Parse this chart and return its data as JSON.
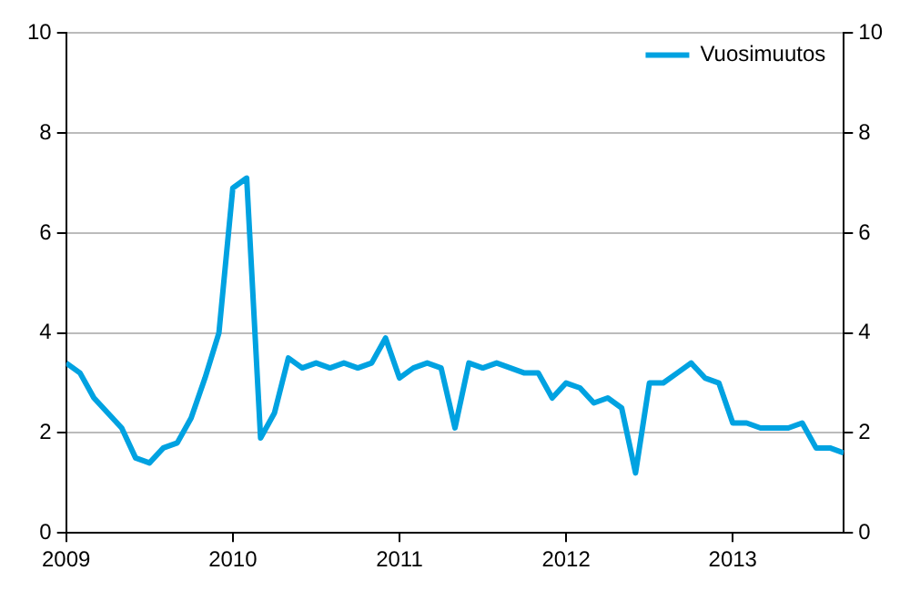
{
  "chart_data": {
    "type": "line",
    "x": [
      "2009-01",
      "2009-02",
      "2009-03",
      "2009-04",
      "2009-05",
      "2009-06",
      "2009-07",
      "2009-08",
      "2009-09",
      "2009-10",
      "2009-11",
      "2009-12",
      "2010-01",
      "2010-02",
      "2010-03",
      "2010-04",
      "2010-05",
      "2010-06",
      "2010-07",
      "2010-08",
      "2010-09",
      "2010-10",
      "2010-11",
      "2010-12",
      "2011-01",
      "2011-02",
      "2011-03",
      "2011-04",
      "2011-05",
      "2011-06",
      "2011-07",
      "2011-08",
      "2011-09",
      "2011-10",
      "2011-11",
      "2011-12",
      "2012-01",
      "2012-02",
      "2012-03",
      "2012-04",
      "2012-05",
      "2012-06",
      "2012-07",
      "2012-08",
      "2012-09",
      "2012-10",
      "2012-11",
      "2012-12",
      "2013-01",
      "2013-02",
      "2013-03",
      "2013-04",
      "2013-05",
      "2013-06",
      "2013-07",
      "2013-08",
      "2013-09"
    ],
    "series": [
      {
        "name": "Vuosimuutos",
        "color": "#00a2e1",
        "values": [
          3.4,
          3.2,
          2.7,
          2.4,
          2.1,
          1.5,
          1.4,
          1.7,
          1.8,
          2.3,
          3.1,
          4.0,
          6.9,
          7.1,
          1.9,
          2.4,
          3.5,
          3.3,
          3.4,
          3.3,
          3.4,
          3.3,
          3.4,
          3.9,
          3.1,
          3.3,
          3.4,
          3.3,
          2.1,
          3.4,
          3.3,
          3.4,
          3.3,
          3.2,
          3.2,
          2.7,
          3.0,
          2.9,
          2.6,
          2.7,
          2.5,
          1.2,
          3.0,
          3.0,
          3.2,
          3.4,
          3.1,
          3.0,
          2.2,
          2.2,
          2.1,
          2.1,
          2.1,
          2.2,
          1.7,
          1.7,
          1.6
        ]
      }
    ],
    "xlim": [
      "2009-01",
      "2013-09"
    ],
    "xticks": [
      {
        "value": "2009",
        "label": "2009"
      },
      {
        "value": "2010",
        "label": "2010"
      },
      {
        "value": "2011",
        "label": "2011"
      },
      {
        "value": "2012",
        "label": "2012"
      },
      {
        "value": "2013",
        "label": "2013"
      }
    ],
    "ylim": [
      0,
      10
    ],
    "yticks": [
      0,
      2,
      4,
      6,
      8,
      10
    ],
    "y2lim": [
      0,
      10
    ],
    "y2ticks": [
      0,
      2,
      4,
      6,
      8,
      10
    ],
    "grid": "y",
    "legend": "top right",
    "marker": "none",
    "line_style": "solid"
  }
}
